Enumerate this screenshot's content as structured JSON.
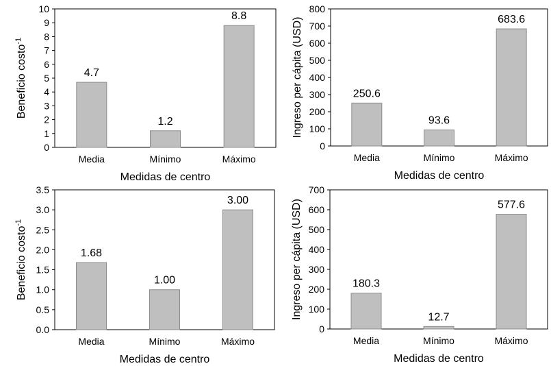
{
  "chart_data": [
    {
      "type": "bar",
      "categories": [
        "Media",
        "Mínimo",
        "Máximo"
      ],
      "values": [
        4.7,
        1.2,
        8.8
      ],
      "value_labels": [
        "4.7",
        "1.2",
        "8.8"
      ],
      "ylim": [
        0,
        10
      ],
      "yticks": [
        "0",
        "1",
        "2",
        "3",
        "4",
        "5",
        "6",
        "7",
        "8",
        "9",
        "10"
      ],
      "xlabel": "Medidas de centro",
      "ylabel": "Beneficio costo",
      "ylabel_sup": "-1",
      "grid": false,
      "bar_color": "#bfbfbf"
    },
    {
      "type": "bar",
      "categories": [
        "Media",
        "Mínimo",
        "Máximo"
      ],
      "values": [
        250.6,
        93.6,
        683.6
      ],
      "value_labels": [
        "250.6",
        "93.6",
        "683.6"
      ],
      "ylim": [
        0,
        800
      ],
      "yticks": [
        "0",
        "100",
        "200",
        "300",
        "400",
        "500",
        "600",
        "700",
        "800"
      ],
      "xlabel": "Medidas de centro",
      "ylabel": "Ingreso per cápita (USD)",
      "ylabel_sup": "",
      "grid": false,
      "bar_color": "#bfbfbf"
    },
    {
      "type": "bar",
      "categories": [
        "Media",
        "Mínimo",
        "Máximo"
      ],
      "values": [
        1.68,
        1.0,
        3.0
      ],
      "value_labels": [
        "1.68",
        "1.00",
        "3.00"
      ],
      "ylim": [
        0,
        3.5
      ],
      "yticks": [
        "0.0",
        "0.5",
        "1.0",
        "1.5",
        "2.0",
        "2.5",
        "3.0",
        "3.5"
      ],
      "xlabel": "Medidas de centro",
      "ylabel": "Beneficio costo",
      "ylabel_sup": "-1",
      "grid": false,
      "bar_color": "#bfbfbf"
    },
    {
      "type": "bar",
      "categories": [
        "Media",
        "Mínimo",
        "Máximo"
      ],
      "values": [
        180.3,
        12.7,
        577.6
      ],
      "value_labels": [
        "180.3",
        "12.7",
        "577.6"
      ],
      "ylim": [
        0,
        700
      ],
      "yticks": [
        "0",
        "100",
        "200",
        "300",
        "400",
        "500",
        "600",
        "700"
      ],
      "xlabel": "Medidas de centro",
      "ylabel": "Ingreso per cápita (USD)",
      "ylabel_sup": "",
      "grid": false,
      "bar_color": "#bfbfbf"
    }
  ]
}
